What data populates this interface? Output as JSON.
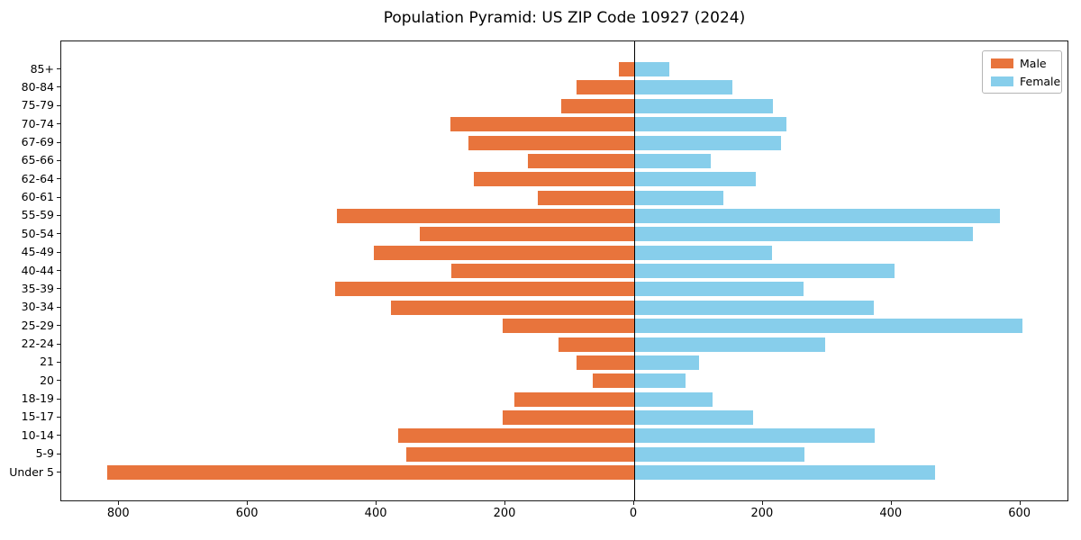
{
  "title": "Population Pyramid: US ZIP Code 10927 (2024)",
  "colors": {
    "male": "#e8743c",
    "female": "#87ceeb",
    "axis": "#1a1a1a",
    "zero_line": "#000000",
    "background": "#ffffff"
  },
  "legend": {
    "male_label": "Male",
    "female_label": "Female",
    "position": "upper right"
  },
  "chart_data": {
    "type": "bar",
    "subtype": "population-pyramid",
    "orientation": "horizontal",
    "title": "Population Pyramid: US ZIP Code 10927 (2024)",
    "xlabel": "",
    "ylabel": "",
    "grid": false,
    "legend_position": "upper right",
    "categories": [
      "85+",
      "80-84",
      "75-79",
      "70-74",
      "67-69",
      "65-66",
      "62-64",
      "60-61",
      "55-59",
      "50-54",
      "45-49",
      "40-44",
      "35-39",
      "30-34",
      "25-29",
      "22-24",
      "21",
      "20",
      "18-19",
      "15-17",
      "10-14",
      "5-9",
      "Under 5"
    ],
    "series": [
      {
        "name": "Male",
        "side": "left",
        "values": [
          24,
          90,
          114,
          286,
          257,
          165,
          249,
          150,
          462,
          333,
          405,
          284,
          465,
          378,
          204,
          118,
          90,
          64,
          186,
          205,
          366,
          354,
          819
        ]
      },
      {
        "name": "Female",
        "side": "right",
        "values": [
          54,
          152,
          216,
          236,
          228,
          119,
          189,
          138,
          568,
          526,
          214,
          405,
          263,
          372,
          603,
          296,
          101,
          80,
          122,
          184,
          374,
          264,
          467
        ]
      }
    ],
    "xlim": [
      -890,
      676
    ],
    "x_ticks": [
      {
        "pos": -800,
        "label": "800"
      },
      {
        "pos": -600,
        "label": "600"
      },
      {
        "pos": -400,
        "label": "400"
      },
      {
        "pos": -200,
        "label": "200"
      },
      {
        "pos": 0,
        "label": "0"
      },
      {
        "pos": 200,
        "label": "200"
      },
      {
        "pos": 400,
        "label": "400"
      },
      {
        "pos": 600,
        "label": "600"
      }
    ]
  }
}
